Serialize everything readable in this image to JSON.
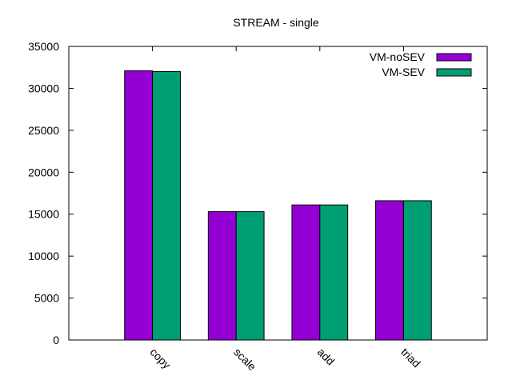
{
  "chart_data": {
    "type": "bar",
    "title": "STREAM - single",
    "xlabel": "",
    "ylabel": "",
    "categories": [
      "copy",
      "scale",
      "add",
      "triad"
    ],
    "series": [
      {
        "name": "VM-noSEV",
        "color": "#9400d3",
        "values": [
          32100,
          15300,
          16100,
          16600
        ]
      },
      {
        "name": "VM-SEV",
        "color": "#009e73",
        "values": [
          32000,
          15300,
          16100,
          16600
        ]
      }
    ],
    "ylim": [
      0,
      35000
    ],
    "yticks": [
      0,
      5000,
      10000,
      15000,
      20000,
      25000,
      30000,
      35000
    ],
    "xlim": [
      -1,
      4
    ],
    "grid": false,
    "legend_position": "top-right",
    "xtick_rotation_deg": 45
  }
}
